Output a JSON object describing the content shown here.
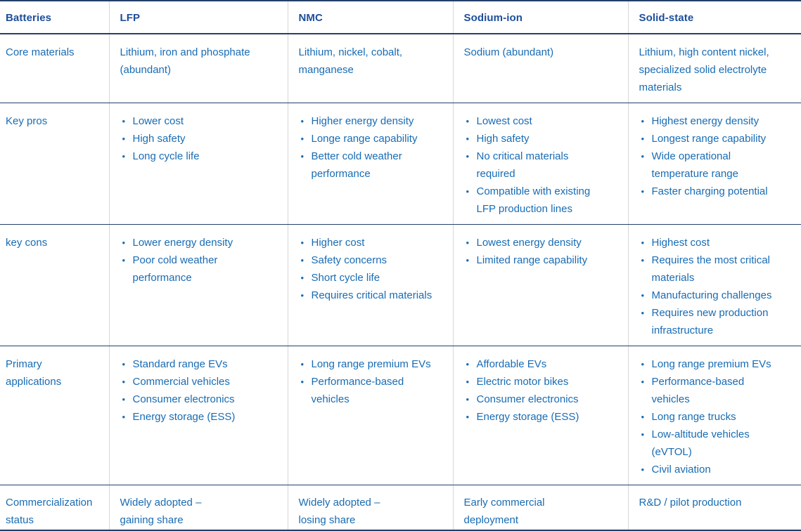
{
  "colors": {
    "header_text": "#1d4e9b",
    "body_text": "#186cb4",
    "rule": "#24406b",
    "divider": "#d7d7d7",
    "background": "#ffffff"
  },
  "table": {
    "columns": [
      "Batteries",
      "LFP",
      "NMC",
      "Sodium-ion",
      "Solid-state"
    ],
    "rows": [
      {
        "label": "Core materials",
        "cells": [
          {
            "type": "text",
            "text": "Lithium, iron and phosphate\n(abundant)"
          },
          {
            "type": "text",
            "text": "Lithium, nickel, cobalt,\nmanganese"
          },
          {
            "type": "text",
            "text": "Sodium (abundant)"
          },
          {
            "type": "text",
            "text": "Lithium, high content nickel,\nspecialized solid electrolyte\nmaterials"
          }
        ]
      },
      {
        "label": "Key pros",
        "cells": [
          {
            "type": "bullets",
            "items": [
              "Lower cost",
              "High safety",
              "Long cycle life"
            ]
          },
          {
            "type": "bullets",
            "items": [
              "Higher energy density",
              "Longe range capability",
              "Better cold weather\nperformance"
            ]
          },
          {
            "type": "bullets",
            "items": [
              "Lowest cost",
              "High safety",
              "No critical materials\nrequired",
              "Compatible with existing\nLFP production lines"
            ]
          },
          {
            "type": "bullets",
            "items": [
              "Highest energy density",
              "Longest range capability",
              "Wide operational\ntemperature range",
              "Faster charging potential"
            ]
          }
        ]
      },
      {
        "label": "key cons",
        "cells": [
          {
            "type": "bullets",
            "items": [
              "Lower energy density",
              "Poor cold weather\nperformance"
            ]
          },
          {
            "type": "bullets",
            "items": [
              "Higher cost",
              "Safety concerns",
              "Short cycle life",
              "Requires critical materials"
            ]
          },
          {
            "type": "bullets",
            "items": [
              "Lowest energy density",
              "Limited range capability"
            ]
          },
          {
            "type": "bullets",
            "items": [
              "Highest cost",
              "Requires the most critical\nmaterials",
              "Manufacturing challenges",
              "Requires new production\ninfrastructure"
            ]
          }
        ]
      },
      {
        "label": "Primary\napplications",
        "cells": [
          {
            "type": "bullets",
            "items": [
              "Standard range EVs",
              "Commercial vehicles",
              "Consumer electronics",
              "Energy storage (ESS)"
            ]
          },
          {
            "type": "bullets",
            "items": [
              "Long range premium EVs",
              "Performance-based\nvehicles"
            ]
          },
          {
            "type": "bullets",
            "items": [
              "Affordable EVs",
              "Electric motor bikes",
              "Consumer electronics",
              "Energy storage (ESS)"
            ]
          },
          {
            "type": "bullets",
            "items": [
              "Long range premium EVs",
              "Performance-based\nvehicles",
              "Long range trucks",
              "Low-altitude vehicles\n(eVTOL)",
              "Civil aviation"
            ]
          }
        ]
      },
      {
        "label": "Commercialization\nstatus",
        "cells": [
          {
            "type": "text",
            "text": "Widely adopted –\ngaining share"
          },
          {
            "type": "text",
            "text": "Widely adopted –\nlosing share"
          },
          {
            "type": "text",
            "text": "Early commercial\ndeployment"
          },
          {
            "type": "text",
            "text": "R&D / pilot production"
          }
        ]
      }
    ]
  }
}
